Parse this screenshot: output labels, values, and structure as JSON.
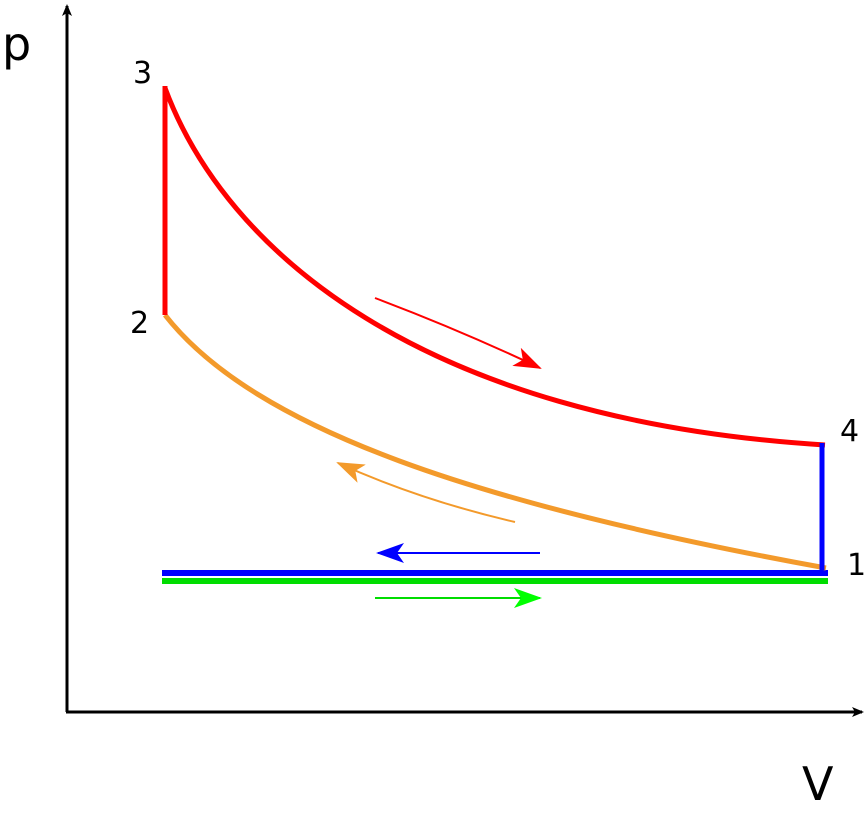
{
  "axes": {
    "y_label": "p",
    "x_label": "V"
  },
  "points": [
    {
      "label": "1"
    },
    {
      "label": "2"
    },
    {
      "label": "3"
    },
    {
      "label": "4"
    }
  ]
}
